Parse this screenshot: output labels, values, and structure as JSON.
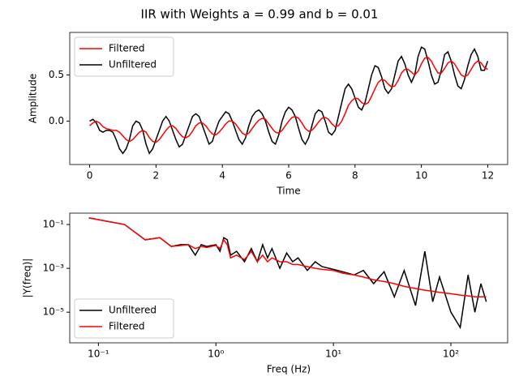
{
  "title": "IIR with Weights a = 0.99 and b = 0.01",
  "chart_data": [
    {
      "type": "line",
      "xlabel": "Time",
      "ylabel": "Amplitude",
      "x": [
        0.0,
        0.1,
        0.2,
        0.3,
        0.4,
        0.5,
        0.6,
        0.7,
        0.8,
        0.9,
        1.0,
        1.1,
        1.2,
        1.3,
        1.4,
        1.5,
        1.6,
        1.7,
        1.8,
        1.9,
        2.0,
        2.1,
        2.2,
        2.3,
        2.4,
        2.5,
        2.6,
        2.7,
        2.8,
        2.9,
        3.0,
        3.1,
        3.2,
        3.3,
        3.4,
        3.5,
        3.6,
        3.7,
        3.8,
        3.9,
        4.0,
        4.1,
        4.2,
        4.3,
        4.4,
        4.5,
        4.6,
        4.7,
        4.8,
        4.9,
        5.0,
        5.1,
        5.2,
        5.3,
        5.4,
        5.5,
        5.6,
        5.7,
        5.8,
        5.9,
        6.0,
        6.1,
        6.2,
        6.3,
        6.4,
        6.5,
        6.6,
        6.7,
        6.8,
        6.9,
        7.0,
        7.1,
        7.2,
        7.3,
        7.4,
        7.5,
        7.6,
        7.7,
        7.8,
        7.9,
        8.0,
        8.1,
        8.2,
        8.3,
        8.4,
        8.5,
        8.6,
        8.7,
        8.8,
        8.9,
        9.0,
        9.1,
        9.2,
        9.3,
        9.4,
        9.5,
        9.6,
        9.7,
        9.8,
        9.9,
        10.0,
        10.1,
        10.2,
        10.3,
        10.4,
        10.5,
        10.6,
        10.7,
        10.8,
        10.9,
        11.0,
        11.1,
        11.2,
        11.3,
        11.4,
        11.5,
        11.6,
        11.7,
        11.8,
        11.9,
        12.0
      ],
      "series": [
        {
          "name": "Filtered",
          "color": "#ff0000",
          "values": [
            -0.05,
            -0.02,
            0.0,
            -0.02,
            -0.06,
            -0.08,
            -0.09,
            -0.1,
            -0.1,
            -0.12,
            -0.16,
            -0.2,
            -0.22,
            -0.2,
            -0.16,
            -0.12,
            -0.1,
            -0.12,
            -0.18,
            -0.22,
            -0.23,
            -0.2,
            -0.15,
            -0.1,
            -0.06,
            -0.05,
            -0.08,
            -0.13,
            -0.17,
            -0.18,
            -0.16,
            -0.11,
            -0.05,
            -0.02,
            -0.02,
            -0.05,
            -0.1,
            -0.14,
            -0.15,
            -0.12,
            -0.08,
            -0.03,
            0.0,
            0.0,
            -0.03,
            -0.08,
            -0.13,
            -0.15,
            -0.13,
            -0.08,
            -0.03,
            0.01,
            0.03,
            0.02,
            -0.03,
            -0.08,
            -0.12,
            -0.13,
            -0.1,
            -0.05,
            0.0,
            0.04,
            0.05,
            0.03,
            -0.02,
            -0.08,
            -0.11,
            -0.1,
            -0.06,
            -0.01,
            0.03,
            0.04,
            0.02,
            -0.03,
            -0.06,
            -0.05,
            0.0,
            0.08,
            0.17,
            0.22,
            0.25,
            0.24,
            0.2,
            0.18,
            0.2,
            0.27,
            0.35,
            0.42,
            0.45,
            0.44,
            0.4,
            0.37,
            0.38,
            0.44,
            0.52,
            0.56,
            0.56,
            0.53,
            0.5,
            0.54,
            0.62,
            0.68,
            0.69,
            0.65,
            0.58,
            0.52,
            0.52,
            0.57,
            0.63,
            0.65,
            0.62,
            0.56,
            0.5,
            0.48,
            0.5,
            0.56,
            0.62,
            0.65,
            0.63,
            0.58,
            0.56
          ]
        },
        {
          "name": "Unfiltered",
          "color": "#000000",
          "values": [
            0.0,
            0.02,
            -0.02,
            -0.1,
            -0.12,
            -0.1,
            -0.1,
            -0.12,
            -0.2,
            -0.3,
            -0.35,
            -0.3,
            -0.2,
            -0.05,
            0.0,
            -0.02,
            -0.1,
            -0.25,
            -0.35,
            -0.3,
            -0.2,
            -0.1,
            0.0,
            0.05,
            0.0,
            -0.1,
            -0.2,
            -0.28,
            -0.25,
            -0.15,
            -0.05,
            0.05,
            0.08,
            0.05,
            -0.05,
            -0.15,
            -0.25,
            -0.22,
            -0.1,
            0.0,
            0.05,
            0.1,
            0.08,
            0.0,
            -0.1,
            -0.2,
            -0.25,
            -0.18,
            -0.05,
            0.05,
            0.1,
            0.12,
            0.08,
            0.0,
            -0.12,
            -0.22,
            -0.25,
            -0.15,
            0.0,
            0.1,
            0.15,
            0.12,
            0.05,
            -0.08,
            -0.2,
            -0.25,
            -0.18,
            -0.05,
            0.08,
            0.12,
            0.1,
            0.0,
            -0.12,
            -0.15,
            -0.1,
            0.05,
            0.2,
            0.35,
            0.4,
            0.35,
            0.25,
            0.15,
            0.12,
            0.2,
            0.35,
            0.5,
            0.6,
            0.58,
            0.48,
            0.35,
            0.3,
            0.35,
            0.5,
            0.65,
            0.7,
            0.62,
            0.5,
            0.42,
            0.5,
            0.7,
            0.8,
            0.78,
            0.65,
            0.5,
            0.4,
            0.42,
            0.55,
            0.72,
            0.75,
            0.65,
            0.5,
            0.38,
            0.35,
            0.45,
            0.6,
            0.72,
            0.78,
            0.7,
            0.55,
            0.55,
            0.65
          ]
        }
      ],
      "xlim": [
        -0.6,
        12.6
      ],
      "xticks": [
        0,
        2,
        4,
        6,
        8,
        10,
        12
      ],
      "ylim": [
        -0.47,
        0.96
      ],
      "yticks": [
        {
          "value": 0,
          "label": "0.0"
        },
        0.5
      ],
      "legend": "upper left"
    },
    {
      "type": "line",
      "xlabel": "Freq (Hz)",
      "ylabel": "|Y(freq)|",
      "xscale": "log",
      "yscale": "log",
      "x": [
        0.083,
        0.167,
        0.25,
        0.333,
        0.417,
        0.5,
        0.583,
        0.667,
        0.75,
        0.833,
        1.0,
        1.083,
        1.167,
        1.25,
        1.333,
        1.5,
        1.75,
        2.0,
        2.25,
        2.5,
        2.75,
        3.0,
        3.5,
        4.0,
        4.5,
        5,
        6,
        7,
        8,
        10,
        12,
        15,
        18,
        22,
        27,
        33,
        40,
        50,
        60,
        70,
        80,
        100,
        120,
        140,
        160,
        180,
        200
      ],
      "series": [
        {
          "name": "Unfiltered",
          "color": "#000000",
          "values": [
            0.2,
            0.1,
            0.02,
            0.025,
            0.01,
            0.012,
            0.012,
            0.004,
            0.012,
            0.01,
            0.012,
            0.006,
            0.025,
            0.02,
            0.004,
            0.006,
            0.002,
            0.008,
            0.002,
            0.012,
            0.003,
            0.008,
            0.001,
            0.005,
            0.002,
            0.003,
            0.0008,
            0.002,
            0.0012,
            0.0009,
            0.0007,
            0.0005,
            0.0008,
            0.0002,
            0.0007,
            5e-05,
            0.0008,
            2e-05,
            0.006,
            3e-05,
            0.0004,
            1e-05,
            2e-06,
            0.0005,
            1e-05,
            0.0002,
            3e-05
          ]
        },
        {
          "name": "Filtered",
          "color": "#ff0000",
          "values": [
            0.2,
            0.1,
            0.02,
            0.025,
            0.01,
            0.011,
            0.012,
            0.008,
            0.01,
            0.009,
            0.011,
            0.008,
            0.02,
            0.012,
            0.003,
            0.004,
            0.0025,
            0.006,
            0.002,
            0.004,
            0.002,
            0.003,
            0.002,
            0.002,
            0.0015,
            0.0015,
            0.0012,
            0.001,
            0.0009,
            0.0008,
            0.0006,
            0.0005,
            0.0004,
            0.0003,
            0.00025,
            0.0002,
            0.00015,
            0.00012,
            0.0001,
            9e-05,
            8e-05,
            7e-05,
            6e-05,
            5.5e-05,
            5e-05,
            5e-05,
            5e-05
          ]
        }
      ],
      "xlim": [
        0.057,
        304
      ],
      "xticks": [
        {
          "value": 0.1,
          "label": "10⁻¹"
        },
        {
          "value": 1,
          "label": "10⁰"
        },
        {
          "value": 10,
          "label": "10¹"
        },
        {
          "value": 100,
          "label": "10²"
        }
      ],
      "ylim": [
        4e-07,
        0.33
      ],
      "yticks": [
        {
          "value": 0.1,
          "label": "10⁻¹"
        },
        {
          "value": 0.001,
          "label": "10⁻³"
        },
        {
          "value": 1e-05,
          "label": "10⁻⁵"
        }
      ],
      "legend": "lower left"
    }
  ]
}
